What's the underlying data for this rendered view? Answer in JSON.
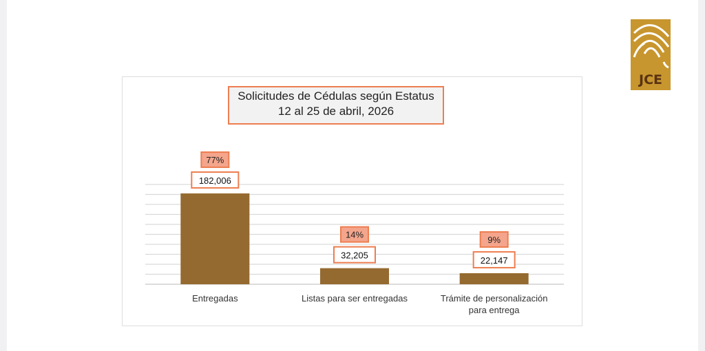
{
  "logo": {
    "text": "JCE"
  },
  "chart_data": {
    "type": "bar",
    "title": "Solicitudes de Cédulas según Estatus",
    "subtitle": "12 al 25 de abril, 2026",
    "categories": [
      "Entregadas",
      "Listas para ser entregadas",
      "Trámite de personalización para entrega"
    ],
    "category_lines": [
      [
        "Entregadas"
      ],
      [
        "Listas para ser entregadas"
      ],
      [
        "Trámite de personalización",
        "para entrega"
      ]
    ],
    "values": [
      182006,
      32205,
      22147
    ],
    "value_labels": [
      "182,006",
      "32,205",
      "22,147"
    ],
    "percent_labels": [
      "77%",
      "14%",
      "9%"
    ],
    "ylim": [
      0,
      200000
    ],
    "grid": true,
    "bar_color": "#956a30",
    "label_border": "#ed7d4f",
    "percent_fill": "#f4a58c"
  }
}
